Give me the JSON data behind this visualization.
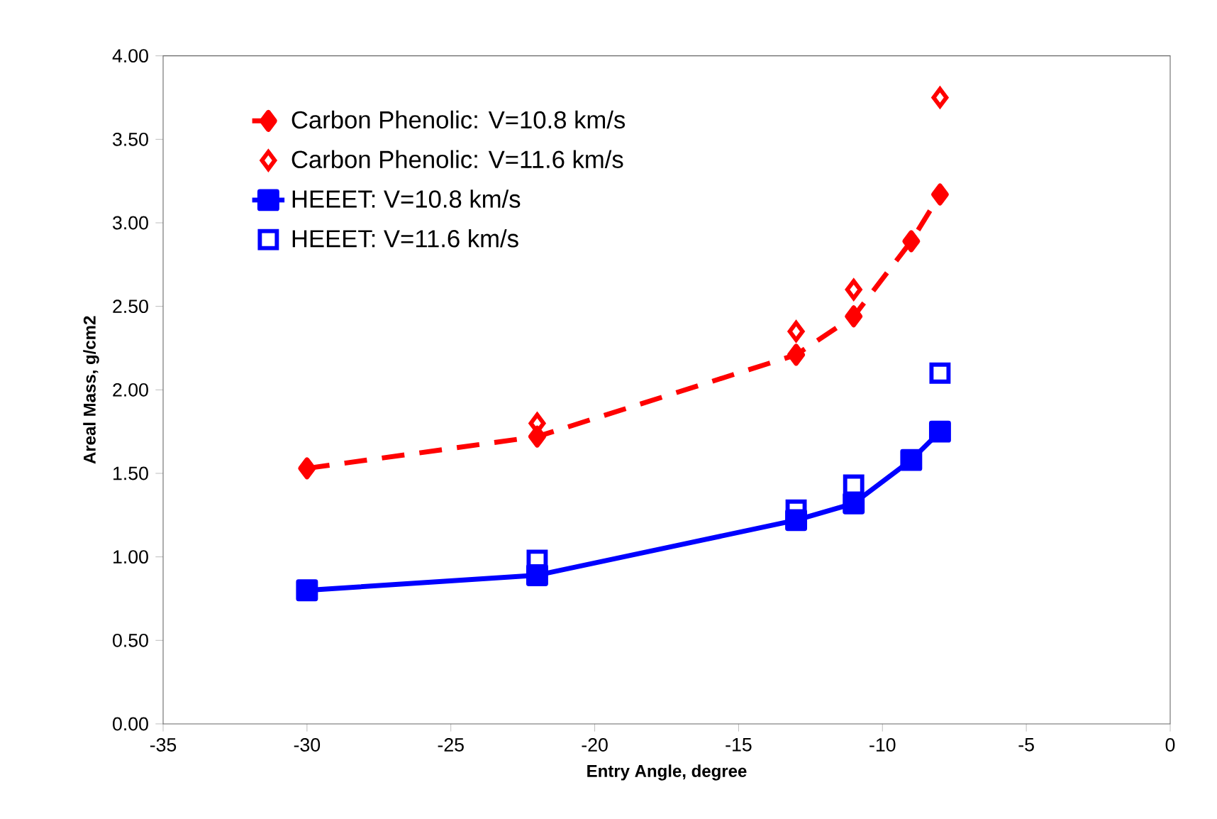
{
  "chart_data": {
    "type": "line",
    "xlabel": "Entry Angle, degree",
    "ylabel": "Areal Mass, g/cm2",
    "xlim": [
      -35,
      0
    ],
    "xticks": [
      -35,
      -30,
      -25,
      -20,
      -15,
      -10,
      -5,
      0
    ],
    "ylim": [
      0,
      4
    ],
    "yticks": [
      {
        "value": 0,
        "label": "0.00"
      },
      {
        "value": 0.5,
        "label": "0.50"
      },
      {
        "value": 1,
        "label": "1.00"
      },
      {
        "value": 1.5,
        "label": "1.50"
      },
      {
        "value": 2,
        "label": "2.00"
      },
      {
        "value": 2.5,
        "label": "2.50"
      },
      {
        "value": 3,
        "label": "3.00"
      },
      {
        "value": 3.5,
        "label": "3.50"
      },
      {
        "value": 4,
        "label": "4.00"
      }
    ],
    "grid": false,
    "legend": "top left",
    "series": [
      {
        "name": "Carbon Phenolic: V=10.8 km/s",
        "color": "#ff0000",
        "marker": "diamond",
        "line_style": "dashed",
        "x": [
          -30,
          -22,
          -13,
          -11,
          -9,
          -8
        ],
        "values": [
          1.53,
          1.72,
          2.21,
          2.44,
          2.89,
          3.17
        ]
      },
      {
        "name": "Carbon Phenolic: V=11.6 km/s",
        "type": "scatter",
        "color": "#ff0000",
        "marker": "diamond",
        "x": [
          -22,
          -13,
          -11,
          -8
        ],
        "values": [
          1.8,
          2.35,
          2.6,
          3.75
        ]
      },
      {
        "name": "HEEET: V=10.8 km/s",
        "color": "#0000ff",
        "marker": "square",
        "line_style": "solid",
        "x": [
          -30,
          -22,
          -13,
          -11,
          -9,
          -8
        ],
        "values": [
          0.8,
          0.89,
          1.22,
          1.32,
          1.58,
          1.75
        ]
      },
      {
        "name": "HEEET: V=11.6 km/s",
        "type": "scatter",
        "color": "#0000ff",
        "marker": "square",
        "x": [
          -22,
          -13,
          -11,
          -8
        ],
        "values": [
          0.98,
          1.28,
          1.43,
          2.1
        ]
      }
    ]
  }
}
